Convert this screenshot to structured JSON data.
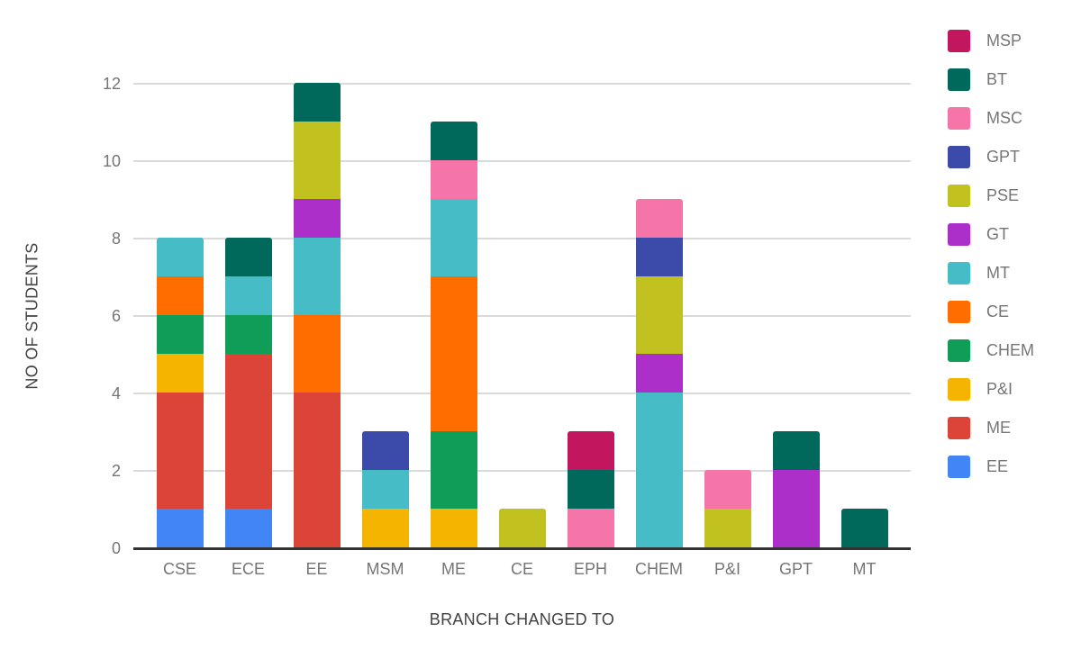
{
  "chart_data": {
    "type": "bar",
    "stacked": true,
    "title": "",
    "xlabel": "BRANCH CHANGED TO",
    "ylabel": "NO OF STUDENTS",
    "categories": [
      "CSE",
      "ECE",
      "EE",
      "MSM",
      "ME",
      "CE",
      "EPH",
      "CHEM",
      "P&I",
      "GPT",
      "MT"
    ],
    "y_ticks": [
      0,
      2,
      4,
      6,
      8,
      10,
      12
    ],
    "ylim": [
      0,
      12
    ],
    "grid": true,
    "legend_position": "right",
    "stack_bottom_to_top": [
      "EE",
      "ME",
      "P&I",
      "CHEM",
      "CE",
      "MT",
      "GT",
      "PSE",
      "GPT",
      "MSC",
      "BT",
      "MSP"
    ],
    "series": [
      {
        "name": "MSP",
        "color": "#c2165e",
        "values": [
          0,
          0,
          0,
          0,
          0,
          0,
          1,
          0,
          0,
          0,
          0
        ]
      },
      {
        "name": "BT",
        "color": "#00695c",
        "values": [
          0,
          1,
          1,
          0,
          1,
          0,
          1,
          0,
          0,
          1,
          1
        ]
      },
      {
        "name": "MSC",
        "color": "#f675a9",
        "values": [
          0,
          0,
          0,
          0,
          1,
          0,
          1,
          1,
          1,
          0,
          0
        ]
      },
      {
        "name": "GPT",
        "color": "#3c4baa",
        "values": [
          0,
          0,
          0,
          1,
          0,
          0,
          0,
          1,
          0,
          0,
          0
        ]
      },
      {
        "name": "PSE",
        "color": "#c1c21f",
        "values": [
          0,
          0,
          2,
          0,
          0,
          1,
          0,
          2,
          1,
          0,
          0
        ]
      },
      {
        "name": "GT",
        "color": "#ab2fc8",
        "values": [
          0,
          0,
          1,
          0,
          0,
          0,
          0,
          1,
          0,
          2,
          0
        ]
      },
      {
        "name": "MT",
        "color": "#46bdc6",
        "values": [
          1,
          1,
          2,
          1,
          2,
          0,
          0,
          4,
          0,
          0,
          0
        ]
      },
      {
        "name": "CE",
        "color": "#ff6d00",
        "values": [
          1,
          0,
          2,
          0,
          4,
          0,
          0,
          0,
          0,
          0,
          0
        ]
      },
      {
        "name": "CHEM",
        "color": "#0f9d58",
        "values": [
          1,
          1,
          0,
          0,
          2,
          0,
          0,
          0,
          0,
          0,
          0
        ]
      },
      {
        "name": "P&I",
        "color": "#f4b400",
        "values": [
          1,
          0,
          0,
          1,
          1,
          0,
          0,
          0,
          0,
          0,
          0
        ]
      },
      {
        "name": "ME",
        "color": "#db4437",
        "values": [
          3,
          4,
          4,
          0,
          0,
          0,
          0,
          0,
          0,
          0,
          0
        ]
      },
      {
        "name": "EE",
        "color": "#4285f4",
        "values": [
          1,
          1,
          0,
          0,
          0,
          0,
          0,
          0,
          0,
          0,
          0
        ]
      }
    ],
    "category_totals": [
      8,
      8,
      12,
      3,
      11,
      1,
      3,
      9,
      2,
      3,
      1
    ],
    "colors": {
      "axis_line": "#333333",
      "gridline": "#dadada",
      "tick_label": "#757575",
      "axis_title": "#424242",
      "background": "#ffffff"
    }
  }
}
